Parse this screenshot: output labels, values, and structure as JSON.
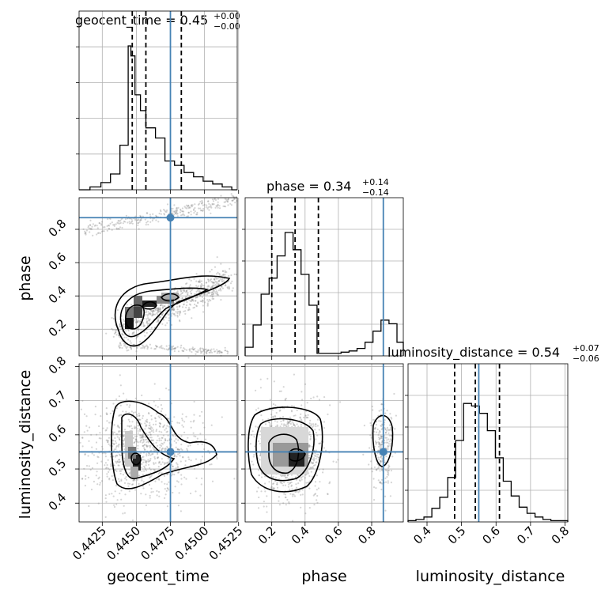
{
  "chart_data": {
    "type": "corner",
    "parameters": [
      "geocent_time",
      "phase",
      "luminosity_distance"
    ],
    "axis_labels": {
      "geocent_time": "geocent_time",
      "phase": "phase",
      "luminosity_distance": "luminosity_distance"
    },
    "ranges": {
      "geocent_time": [
        0.4408,
        0.4524
      ],
      "phase": [
        0.04,
        0.99
      ],
      "luminosity_distance": [
        0.345,
        0.808
      ]
    },
    "ticks": {
      "geocent_time": [
        0.4425,
        0.445,
        0.4475,
        0.45,
        0.4525
      ],
      "phase": [
        0.2,
        0.4,
        0.6,
        0.8
      ],
      "luminosity_distance": [
        0.4,
        0.5,
        0.6,
        0.7,
        0.8
      ]
    },
    "tick_labels": {
      "geocent_time": [
        "0.4425",
        "0.4450",
        "0.4475",
        "0.4500",
        "0.4525"
      ],
      "phase": [
        "0.2",
        "0.4",
        "0.6",
        "0.8"
      ],
      "luminosity_distance": [
        "0.4",
        "0.5",
        "0.6",
        "0.7",
        "0.8"
      ]
    },
    "truths": {
      "geocent_time": 0.4475,
      "phase": 0.87,
      "luminosity_distance": 0.55
    },
    "titles": {
      "geocent_time": {
        "text": "geocent_time = 0.45",
        "sup": "+0.00",
        "sub": "−0.00"
      },
      "phase": {
        "text": "phase = 0.34",
        "sup": "+0.14",
        "sub": "−0.14"
      },
      "luminosity_distance": {
        "text": "luminosity_distance = 0.54",
        "sup": "+0.07",
        "sub": "−0.06"
      }
    },
    "quantiles": {
      "geocent_time": [
        0.4447,
        0.4457,
        0.4483
      ],
      "phase": [
        0.2,
        0.34,
        0.48
      ],
      "luminosity_distance": [
        0.48,
        0.54,
        0.61
      ]
    },
    "histograms": {
      "geocent_time": {
        "bin_edges": [
          0.4408,
          0.44095,
          0.4411,
          0.44125,
          0.4414,
          0.44155,
          0.4417,
          0.44185,
          0.442,
          0.44215,
          0.4423,
          0.44245,
          0.4426,
          0.44275,
          0.4429,
          0.44305,
          0.4432,
          0.44335,
          0.4435,
          0.44365,
          0.4438,
          0.44395,
          0.4441,
          0.44425,
          0.4444,
          0.44455,
          0.4447,
          0.44485,
          0.445,
          0.44515,
          0.4453,
          0.44545,
          0.4456,
          0.44575,
          0.4459,
          0.44605,
          0.4462,
          0.44635,
          0.4465,
          0.44665,
          0.4468,
          0.44695,
          0.4471,
          0.44725,
          0.4474,
          0.44755,
          0.4477,
          0.44785,
          0.448,
          0.44815,
          0.4483,
          0.44845,
          0.4486,
          0.44875,
          0.4489,
          0.44905,
          0.4492,
          0.44935,
          0.4495,
          0.44965,
          0.4498,
          0.44995,
          0.4501,
          0.45025,
          0.4504,
          0.45055,
          0.4507,
          0.45085,
          0.451,
          0.45115,
          0.4513,
          0.45145,
          0.4516,
          0.45175,
          0.4519,
          0.45205,
          0.4522,
          0.45235,
          0.4524
        ],
        "counts_edges_note": "",
        "step_x": [
          0.4408,
          0.4416,
          0.4424,
          0.4431,
          0.4438,
          0.4444,
          0.4446,
          0.4449,
          0.4453,
          0.4457,
          0.4464,
          0.4471,
          0.4478,
          0.4485,
          0.4492,
          0.4499,
          0.4506,
          0.4513,
          0.452,
          0.4524
        ],
        "step_y": [
          0.0,
          0.02,
          0.05,
          0.11,
          0.31,
          1.0,
          0.93,
          0.66,
          0.55,
          0.43,
          0.36,
          0.2,
          0.17,
          0.12,
          0.09,
          0.06,
          0.04,
          0.02,
          0.0
        ]
      },
      "phase": {
        "step_x": [
          0.04,
          0.088,
          0.136,
          0.184,
          0.232,
          0.28,
          0.328,
          0.376,
          0.424,
          0.472,
          0.52,
          0.568,
          0.616,
          0.664,
          0.712,
          0.76,
          0.808,
          0.856,
          0.904,
          0.952,
          0.99
        ],
        "step_y": [
          0.07,
          0.25,
          0.5,
          0.63,
          0.81,
          1.0,
          0.86,
          0.66,
          0.41,
          0.02,
          0.02,
          0.02,
          0.03,
          0.04,
          0.06,
          0.11,
          0.2,
          0.29,
          0.26,
          0.11
        ]
      },
      "luminosity_distance": {
        "step_x": [
          0.345,
          0.368,
          0.391,
          0.414,
          0.437,
          0.46,
          0.483,
          0.506,
          0.529,
          0.552,
          0.575,
          0.598,
          0.621,
          0.644,
          0.667,
          0.69,
          0.713,
          0.736,
          0.759,
          0.782,
          0.808
        ],
        "step_y": [
          0.01,
          0.02,
          0.04,
          0.11,
          0.2,
          0.36,
          0.66,
          0.96,
          0.94,
          0.88,
          0.74,
          0.52,
          0.33,
          0.21,
          0.12,
          0.07,
          0.04,
          0.02,
          0.01,
          0.01
        ]
      }
    },
    "grid": true
  }
}
